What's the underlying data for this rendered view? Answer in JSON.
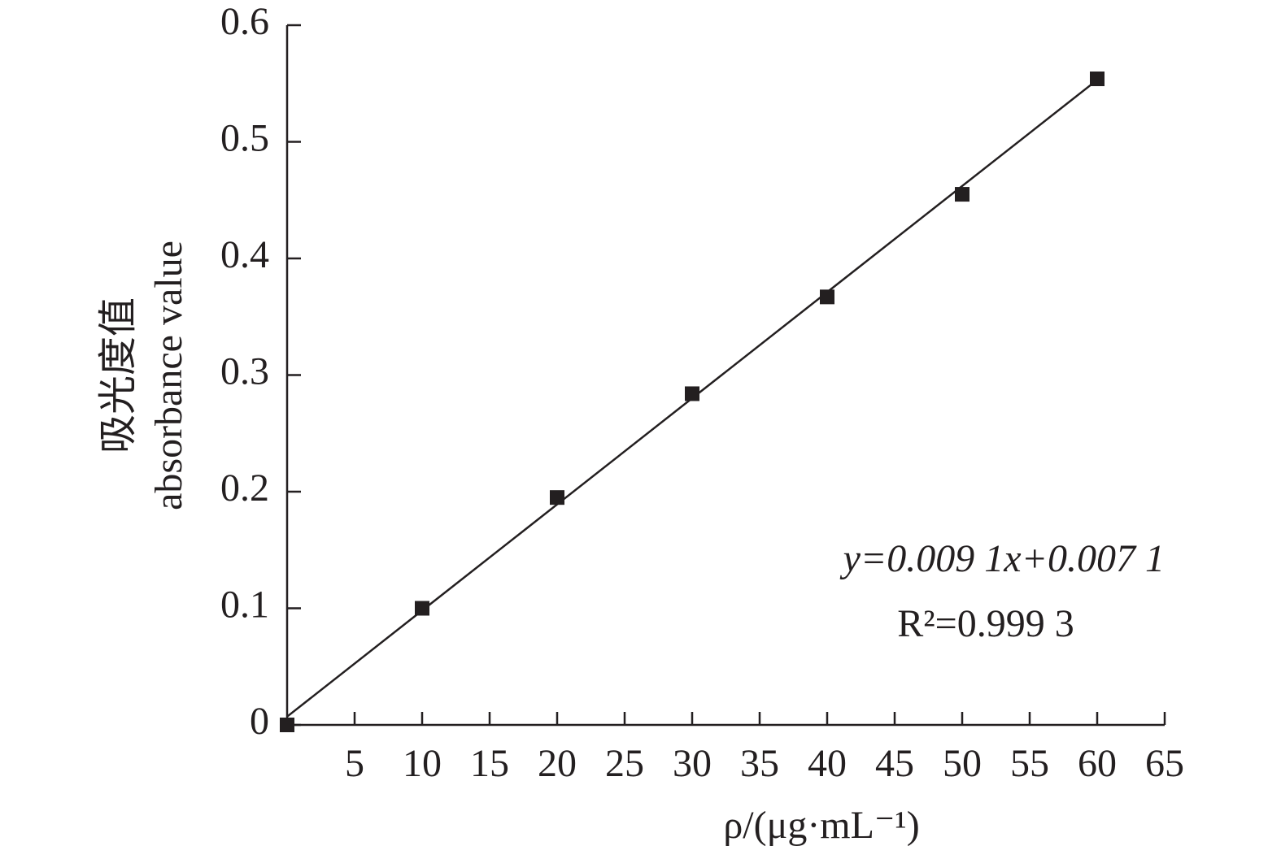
{
  "chart_data": {
    "type": "scatter",
    "x_label": "ρ/(μg·mL⁻¹)",
    "y_label": [
      "吸光度值",
      "absorbance value"
    ],
    "annotations": [
      "y=0.009 1x+0.007 1",
      "R²=0.999 3"
    ],
    "x": [
      0,
      10,
      20,
      30,
      40,
      50,
      60
    ],
    "values": [
      0,
      0.1,
      0.195,
      0.284,
      0.367,
      0.455,
      0.554
    ],
    "color": "#231f20",
    "fit": {
      "x": [
        0,
        60
      ],
      "values": [
        0.0071,
        0.5531
      ]
    },
    "xlim": [
      0,
      65
    ],
    "xticks": [
      5,
      10,
      15,
      20,
      25,
      30,
      35,
      40,
      45,
      50,
      55,
      60,
      65
    ],
    "ylim": [
      0,
      0.6
    ],
    "yticks": [
      0,
      0.1,
      0.2,
      0.3,
      0.4,
      0.5,
      0.6
    ],
    "grid": false
  }
}
